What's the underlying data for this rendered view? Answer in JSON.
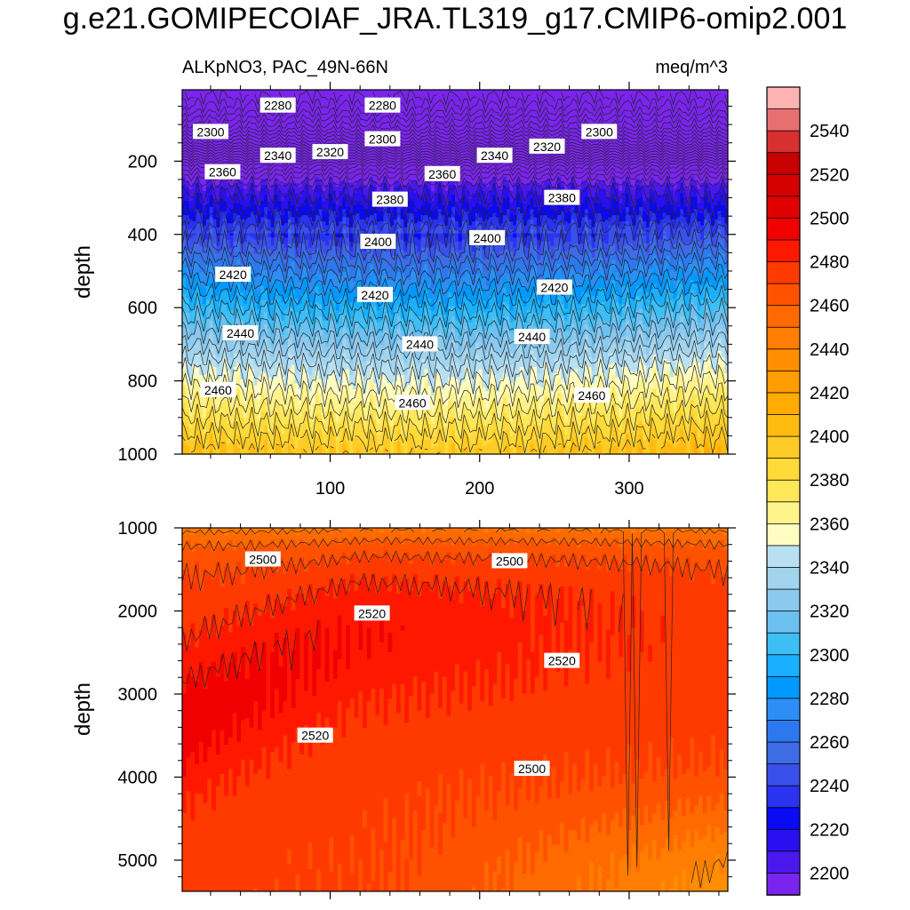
{
  "title": "g.e21.GOMIPECOIAF_JRA.TL319_g17.CMIP6-omip2.001",
  "chart_data": [
    {
      "type": "contour",
      "panel": "upper",
      "left_title": "ALKpNO3, PAC_49N-66N",
      "right_title": "meq/m^3",
      "ylabel": "depth",
      "xlabel": "",
      "xlim": [
        1,
        366
      ],
      "ylim": [
        1000,
        5
      ],
      "y_reversed": true,
      "xticks": [
        100,
        200,
        300
      ],
      "yticks": [
        200,
        400,
        600,
        800,
        1000
      ],
      "contour_labels": [
        {
          "text": "2280",
          "x": 65,
          "y": 48
        },
        {
          "text": "2280",
          "x": 135,
          "y": 48
        },
        {
          "text": "2300",
          "x": 20,
          "y": 120
        },
        {
          "text": "2300",
          "x": 135,
          "y": 140
        },
        {
          "text": "2300",
          "x": 280,
          "y": 120
        },
        {
          "text": "2320",
          "x": 100,
          "y": 175
        },
        {
          "text": "2320",
          "x": 245,
          "y": 160
        },
        {
          "text": "2340",
          "x": 65,
          "y": 185
        },
        {
          "text": "2340",
          "x": 210,
          "y": 185
        },
        {
          "text": "2360",
          "x": 28,
          "y": 230
        },
        {
          "text": "2360",
          "x": 175,
          "y": 235
        },
        {
          "text": "2380",
          "x": 140,
          "y": 305
        },
        {
          "text": "2380",
          "x": 255,
          "y": 300
        },
        {
          "text": "2400",
          "x": 132,
          "y": 420
        },
        {
          "text": "2400",
          "x": 205,
          "y": 410
        },
        {
          "text": "2420",
          "x": 35,
          "y": 510
        },
        {
          "text": "2420",
          "x": 130,
          "y": 565
        },
        {
          "text": "2420",
          "x": 250,
          "y": 545
        },
        {
          "text": "2440",
          "x": 40,
          "y": 670
        },
        {
          "text": "2440",
          "x": 160,
          "y": 700
        },
        {
          "text": "2440",
          "x": 235,
          "y": 680
        },
        {
          "text": "2460",
          "x": 25,
          "y": 825
        },
        {
          "text": "2460",
          "x": 155,
          "y": 860
        },
        {
          "text": "2460",
          "x": 275,
          "y": 840
        }
      ]
    },
    {
      "type": "contour",
      "panel": "lower",
      "ylabel": "depth",
      "xlabel": "",
      "xlim": [
        1,
        366
      ],
      "ylim": [
        5375,
        1000
      ],
      "y_reversed": true,
      "yticks": [
        1000,
        2000,
        3000,
        4000,
        5000
      ],
      "contour_labels": [
        {
          "text": "2500",
          "x": 55,
          "y": 1380
        },
        {
          "text": "2500",
          "x": 220,
          "y": 1400
        },
        {
          "text": "2520",
          "x": 128,
          "y": 2030
        },
        {
          "text": "2520",
          "x": 255,
          "y": 2600
        },
        {
          "text": "2520",
          "x": 90,
          "y": 3500
        },
        {
          "text": "2500",
          "x": 235,
          "y": 3900
        }
      ]
    }
  ],
  "colorbar": {
    "labels": [
      "2540",
      "2520",
      "2500",
      "2480",
      "2460",
      "2440",
      "2420",
      "2400",
      "2380",
      "2360",
      "2340",
      "2320",
      "2300",
      "2280",
      "2260",
      "2240",
      "2220",
      "2200"
    ],
    "colors": [
      "#ffb2b2",
      "#e87070",
      "#d73030",
      "#c70000",
      "#d50000",
      "#e00000",
      "#f00000",
      "#ff1800",
      "#ff3a00",
      "#ff5200",
      "#ff6a00",
      "#ff7d00",
      "#ff8e00",
      "#ff9c00",
      "#ffab00",
      "#ffbb10",
      "#ffcb26",
      "#ffda38",
      "#ffe75a",
      "#fff38c",
      "#fffcc2",
      "#b8e0f2",
      "#a2d4ee",
      "#8cc9ee",
      "#6dc1f0",
      "#3dbff5",
      "#1ab0ff",
      "#0099ff",
      "#2d8ff5",
      "#2d78ee",
      "#3e6be6",
      "#3a50ea",
      "#2a33f0",
      "#0a0af5",
      "#2a10f0",
      "#4a18ec",
      "#7a25ee"
    ]
  }
}
